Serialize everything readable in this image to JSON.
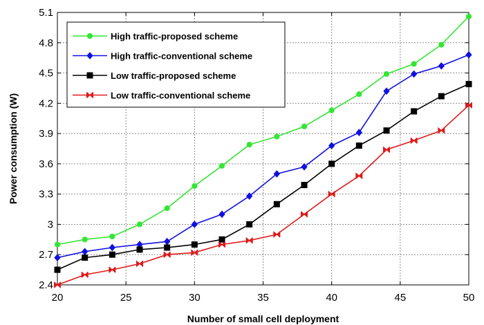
{
  "chart_data": {
    "type": "line",
    "title": "",
    "xlabel": "Number of small cell deployment",
    "ylabel": "Power consumption (W)",
    "xlim": [
      20,
      50
    ],
    "ylim": [
      2.4,
      5.1
    ],
    "xticks": [
      20,
      25,
      30,
      35,
      40,
      45,
      50
    ],
    "xtick_labels": [
      "20",
      "25",
      "30",
      "35",
      "40",
      "45",
      "50"
    ],
    "yticks": [
      2.4,
      2.7,
      3.0,
      3.3,
      3.6,
      3.9,
      4.2,
      4.5,
      4.8,
      5.1
    ],
    "ytick_labels": [
      "2.4",
      "2.7",
      "3",
      "3.3",
      "3.6",
      "3.9",
      "4.2",
      "4.5",
      "4.8",
      "5.1"
    ],
    "grid": true,
    "legend_position": "top-left",
    "x": [
      20,
      22,
      24,
      26,
      28,
      30,
      32,
      34,
      36,
      38,
      40,
      42,
      44,
      46,
      48,
      50
    ],
    "series": [
      {
        "name": "High traffic-proposed scheme",
        "color": "#33e633",
        "marker": "circle",
        "values": [
          2.8,
          2.85,
          2.88,
          3.0,
          3.16,
          3.38,
          3.58,
          3.79,
          3.87,
          3.97,
          4.13,
          4.29,
          4.49,
          4.59,
          4.78,
          5.06
        ]
      },
      {
        "name": "High traffic-conventional scheme",
        "color": "#1010e0",
        "marker": "diamond",
        "values": [
          2.67,
          2.73,
          2.77,
          2.8,
          2.83,
          3.0,
          3.1,
          3.28,
          3.5,
          3.57,
          3.78,
          3.91,
          4.32,
          4.49,
          4.57,
          4.68
        ]
      },
      {
        "name": "Low traffic-proposed scheme",
        "color": "#000000",
        "marker": "square",
        "values": [
          2.55,
          2.67,
          2.7,
          2.75,
          2.77,
          2.8,
          2.85,
          3.0,
          3.2,
          3.39,
          3.6,
          3.78,
          3.93,
          4.12,
          4.27,
          4.39
        ]
      },
      {
        "name": "Low traffic-conventional scheme",
        "color": "#e01a1a",
        "marker": "bowtie",
        "values": [
          2.4,
          2.5,
          2.55,
          2.61,
          2.7,
          2.72,
          2.8,
          2.84,
          2.9,
          3.1,
          3.3,
          3.48,
          3.74,
          3.83,
          3.93,
          4.18
        ]
      }
    ]
  }
}
